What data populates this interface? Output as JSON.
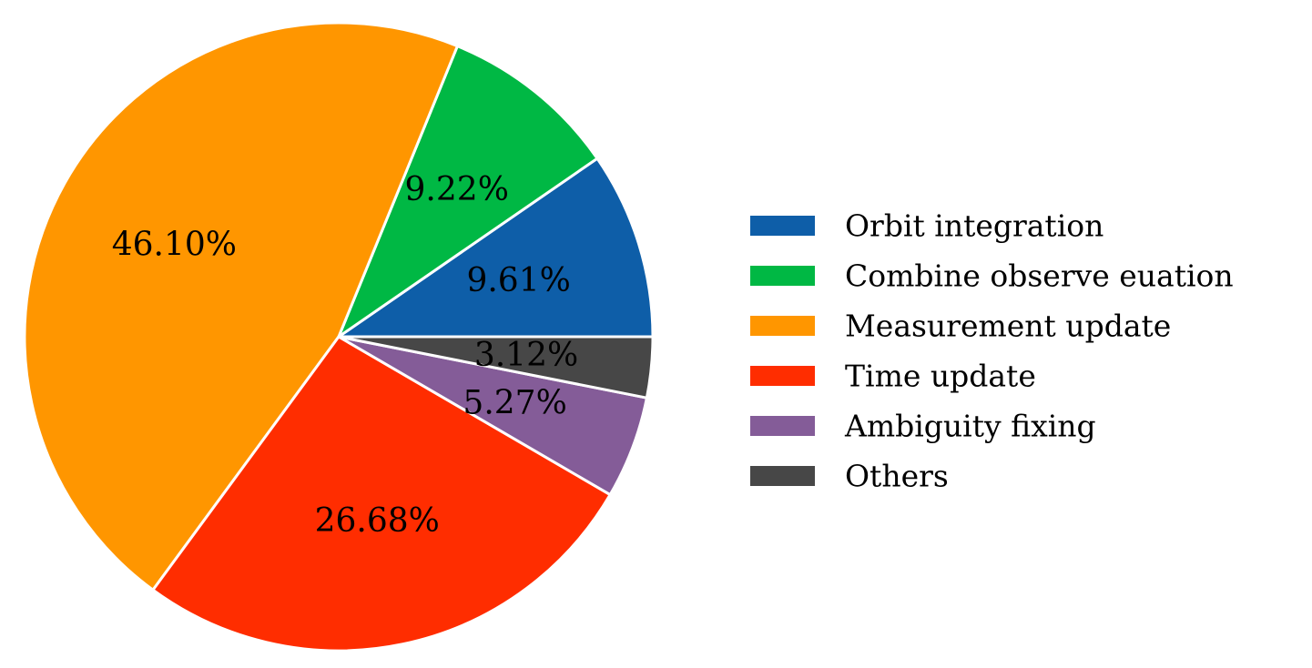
{
  "chart_data": {
    "type": "pie",
    "labels": [
      "Orbit integration",
      "Combine observe euation",
      "Measurement update",
      "Time update",
      "Ambiguity fixing",
      "Others"
    ],
    "values": [
      9.61,
      9.22,
      46.1,
      26.68,
      5.27,
      3.12
    ],
    "value_labels": [
      "9.61%",
      "9.22%",
      "46.10%",
      "26.68%",
      "5.27%",
      "3.12%"
    ],
    "colors": [
      "#0e5ea8",
      "#00b844",
      "#ff9600",
      "#ff2d00",
      "#845c98",
      "#474747"
    ],
    "start_angle_deg": 0,
    "direction": "counterclockwise",
    "legend_position": "right",
    "title": "",
    "xlabel": "",
    "ylabel": ""
  }
}
